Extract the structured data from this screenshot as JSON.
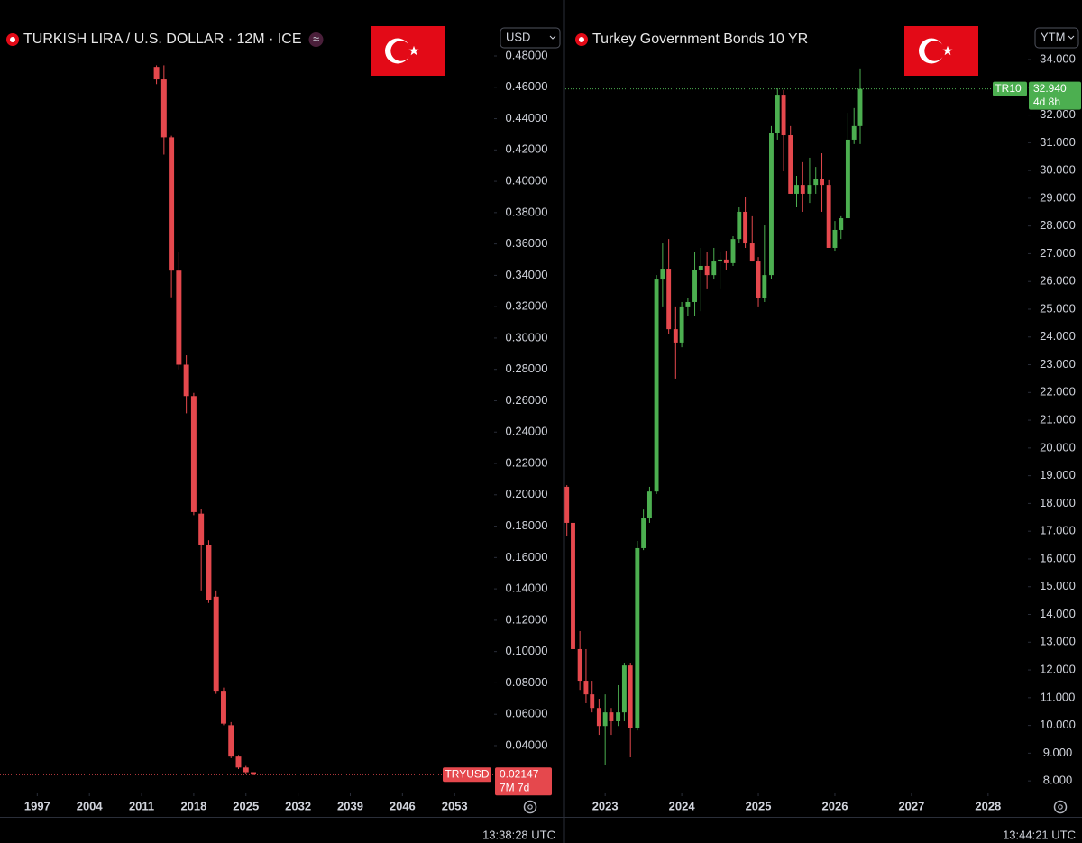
{
  "chart_data": [
    {
      "type": "candlestick",
      "title": "TURKISH LIRA / U.S. DOLLAR · 12M · ICE",
      "unit_selector": "USD",
      "x": [
        2013,
        2014,
        2015,
        2016,
        2017,
        2018,
        2019,
        2020,
        2021,
        2022,
        2023,
        2024,
        2025,
        2026
      ],
      "open": [
        0.473,
        0.465,
        0.428,
        0.343,
        0.283,
        0.263,
        0.188,
        0.168,
        0.135,
        0.075,
        0.053,
        0.033,
        0.026,
        0.023
      ],
      "high": [
        0.474,
        0.474,
        0.429,
        0.355,
        0.289,
        0.265,
        0.191,
        0.171,
        0.139,
        0.077,
        0.055,
        0.034,
        0.027,
        0.023
      ],
      "low": [
        0.462,
        0.417,
        0.326,
        0.28,
        0.252,
        0.187,
        0.139,
        0.131,
        0.073,
        0.053,
        0.032,
        0.025,
        0.022,
        0.021
      ],
      "close": [
        0.465,
        0.428,
        0.343,
        0.283,
        0.263,
        0.189,
        0.168,
        0.133,
        0.075,
        0.054,
        0.033,
        0.026,
        0.023,
        0.02147
      ],
      "up_color": "#4caf50",
      "down_color": "#e5484d",
      "xlim": [
        1992,
        2058.3
      ],
      "xticks": [
        1997,
        2004,
        2011,
        2018,
        2025,
        2032,
        2039,
        2046,
        2053
      ],
      "ylim": [
        0.0095,
        0.4984
      ],
      "yticks": [
        {
          "value": 0.04,
          "label": "0.04000"
        },
        {
          "value": 0.06,
          "label": "0.06000"
        },
        {
          "value": 0.08,
          "label": "0.08000"
        },
        {
          "value": 0.1,
          "label": "0.10000"
        },
        {
          "value": 0.12,
          "label": "0.12000"
        },
        {
          "value": 0.14,
          "label": "0.14000"
        },
        {
          "value": 0.16,
          "label": "0.16000"
        },
        {
          "value": 0.18,
          "label": "0.18000"
        },
        {
          "value": 0.2,
          "label": "0.20000"
        },
        {
          "value": 0.22,
          "label": "0.22000"
        },
        {
          "value": 0.24,
          "label": "0.24000"
        },
        {
          "value": 0.26,
          "label": "0.26000"
        },
        {
          "value": 0.28,
          "label": "0.28000"
        },
        {
          "value": 0.3,
          "label": "0.30000"
        },
        {
          "value": 0.32,
          "label": "0.32000"
        },
        {
          "value": 0.34,
          "label": "0.34000"
        },
        {
          "value": 0.36,
          "label": "0.36000"
        },
        {
          "value": 0.38,
          "label": "0.38000"
        },
        {
          "value": 0.4,
          "label": "0.40000"
        },
        {
          "value": 0.42,
          "label": "0.42000"
        },
        {
          "value": 0.44,
          "label": "0.44000"
        },
        {
          "value": 0.46,
          "label": "0.46000"
        },
        {
          "value": 0.48,
          "label": "0.48000"
        }
      ],
      "last_price": {
        "symbol": "TRYUSD",
        "label": "0.02147",
        "countdown": "7M 7d"
      },
      "timestamp": "13:38:28 UTC"
    },
    {
      "type": "candlestick",
      "title": "Turkey Government Bonds 10 YR",
      "unit_selector": "YTM",
      "x": [
        2022.5,
        2022.58,
        2022.67,
        2022.75,
        2022.83,
        2022.92,
        2023,
        2023.08,
        2023.17,
        2023.25,
        2023.33,
        2023.42,
        2023.5,
        2023.58,
        2023.67,
        2023.75,
        2023.83,
        2023.92,
        2024,
        2024.08,
        2024.17,
        2024.25,
        2024.33,
        2024.42,
        2024.5,
        2024.58,
        2024.67,
        2024.75,
        2024.83,
        2024.92,
        2025,
        2025.08,
        2025.17,
        2025.25,
        2025.33,
        2025.42,
        2025.5,
        2025.58,
        2025.67,
        2025.75,
        2025.83,
        2025.92,
        2026,
        2026.08,
        2026.17,
        2026.25,
        2026.33
      ],
      "open": [
        18.6,
        17.3,
        12.75,
        11.61,
        11.12,
        10.63,
        9.98,
        10.47,
        10.15,
        10.47,
        12.16,
        9.89,
        16.39,
        17.46,
        18.43,
        26.07,
        26.46,
        24.28,
        23.8,
        25.1,
        25.26,
        26.4,
        26.56,
        26.23,
        26.72,
        26.79,
        26.66,
        27.53,
        28.51,
        27.37,
        26.72,
        25.42,
        26.23,
        31.34,
        32.73,
        31.27,
        29.16,
        29.48,
        29.16,
        29.48,
        29.71,
        29.48,
        27.21,
        27.86,
        28.28,
        31.11,
        31.6
      ],
      "high": [
        18.66,
        17.36,
        13.4,
        12.75,
        11.61,
        10.96,
        11.12,
        10.63,
        11.45,
        12.26,
        12.26,
        16.65,
        17.78,
        18.6,
        26.23,
        27.37,
        27.53,
        25.1,
        25.26,
        25.42,
        27.05,
        27.21,
        27.05,
        27.21,
        27.05,
        27.11,
        27.63,
        28.67,
        29.06,
        28.35,
        26.88,
        28.02,
        31.6,
        32.96,
        32.9,
        31.6,
        29.81,
        30.3,
        30.46,
        30.13,
        30.62,
        29.65,
        28.18,
        28.35,
        32.08,
        32.25,
        33.68
      ],
      "low": [
        16.81,
        12.58,
        11.28,
        10.8,
        10.47,
        9.66,
        8.59,
        9.66,
        9.98,
        10.15,
        8.85,
        9.82,
        16.32,
        17.3,
        18.34,
        25.1,
        24.12,
        22.5,
        23.63,
        24.77,
        24.77,
        24.93,
        25.75,
        26.07,
        25.75,
        26.4,
        26.56,
        27.37,
        27.21,
        26.72,
        25.1,
        25.26,
        26.07,
        31.11,
        29.97,
        29.16,
        28.67,
        28.51,
        28.83,
        29.16,
        28.51,
        27.21,
        27.11,
        27.53,
        28.28,
        30.95,
        30.95
      ],
      "close": [
        17.3,
        12.75,
        11.61,
        11.12,
        10.63,
        9.98,
        10.47,
        10.15,
        10.47,
        12.16,
        9.89,
        16.39,
        17.46,
        18.43,
        26.07,
        26.46,
        24.28,
        23.8,
        25.1,
        25.26,
        26.4,
        26.56,
        26.23,
        26.72,
        26.79,
        26.66,
        27.53,
        28.51,
        27.37,
        26.72,
        25.42,
        26.23,
        31.34,
        32.73,
        31.27,
        29.16,
        29.48,
        29.16,
        29.48,
        29.71,
        29.48,
        27.21,
        27.86,
        28.28,
        31.11,
        31.6,
        32.94
      ],
      "up_color": "#4caf50",
      "down_color": "#e5484d",
      "xlim": [
        2022.48,
        2028.52
      ],
      "xticks": [
        2023,
        2024,
        2025,
        2026,
        2027,
        2028
      ],
      "ylim": [
        7.55,
        35.17
      ],
      "yticks": [
        {
          "value": 8,
          "label": "8.000"
        },
        {
          "value": 9,
          "label": "9.000"
        },
        {
          "value": 10,
          "label": "10.000"
        },
        {
          "value": 11,
          "label": "11.000"
        },
        {
          "value": 12,
          "label": "12.000"
        },
        {
          "value": 13,
          "label": "13.000"
        },
        {
          "value": 14,
          "label": "14.000"
        },
        {
          "value": 15,
          "label": "15.000"
        },
        {
          "value": 16,
          "label": "16.000"
        },
        {
          "value": 17,
          "label": "17.000"
        },
        {
          "value": 18,
          "label": "18.000"
        },
        {
          "value": 19,
          "label": "19.000"
        },
        {
          "value": 20,
          "label": "20.000"
        },
        {
          "value": 21,
          "label": "21.000"
        },
        {
          "value": 22,
          "label": "22.000"
        },
        {
          "value": 23,
          "label": "23.000"
        },
        {
          "value": 24,
          "label": "24.000"
        },
        {
          "value": 25,
          "label": "25.000"
        },
        {
          "value": 26,
          "label": "26.000"
        },
        {
          "value": 27,
          "label": "27.000"
        },
        {
          "value": 28,
          "label": "28.000"
        },
        {
          "value": 29,
          "label": "29.000"
        },
        {
          "value": 30,
          "label": "30.000"
        },
        {
          "value": 31,
          "label": "31.000"
        },
        {
          "value": 32,
          "label": "32.000"
        },
        {
          "value": 33,
          "label": "33.000"
        },
        {
          "value": 34,
          "label": "34.000"
        }
      ],
      "last_price": {
        "symbol": "TR10",
        "label": "32.940",
        "countdown": "4d 8h"
      },
      "timestamp": "13:44:21 UTC"
    }
  ]
}
